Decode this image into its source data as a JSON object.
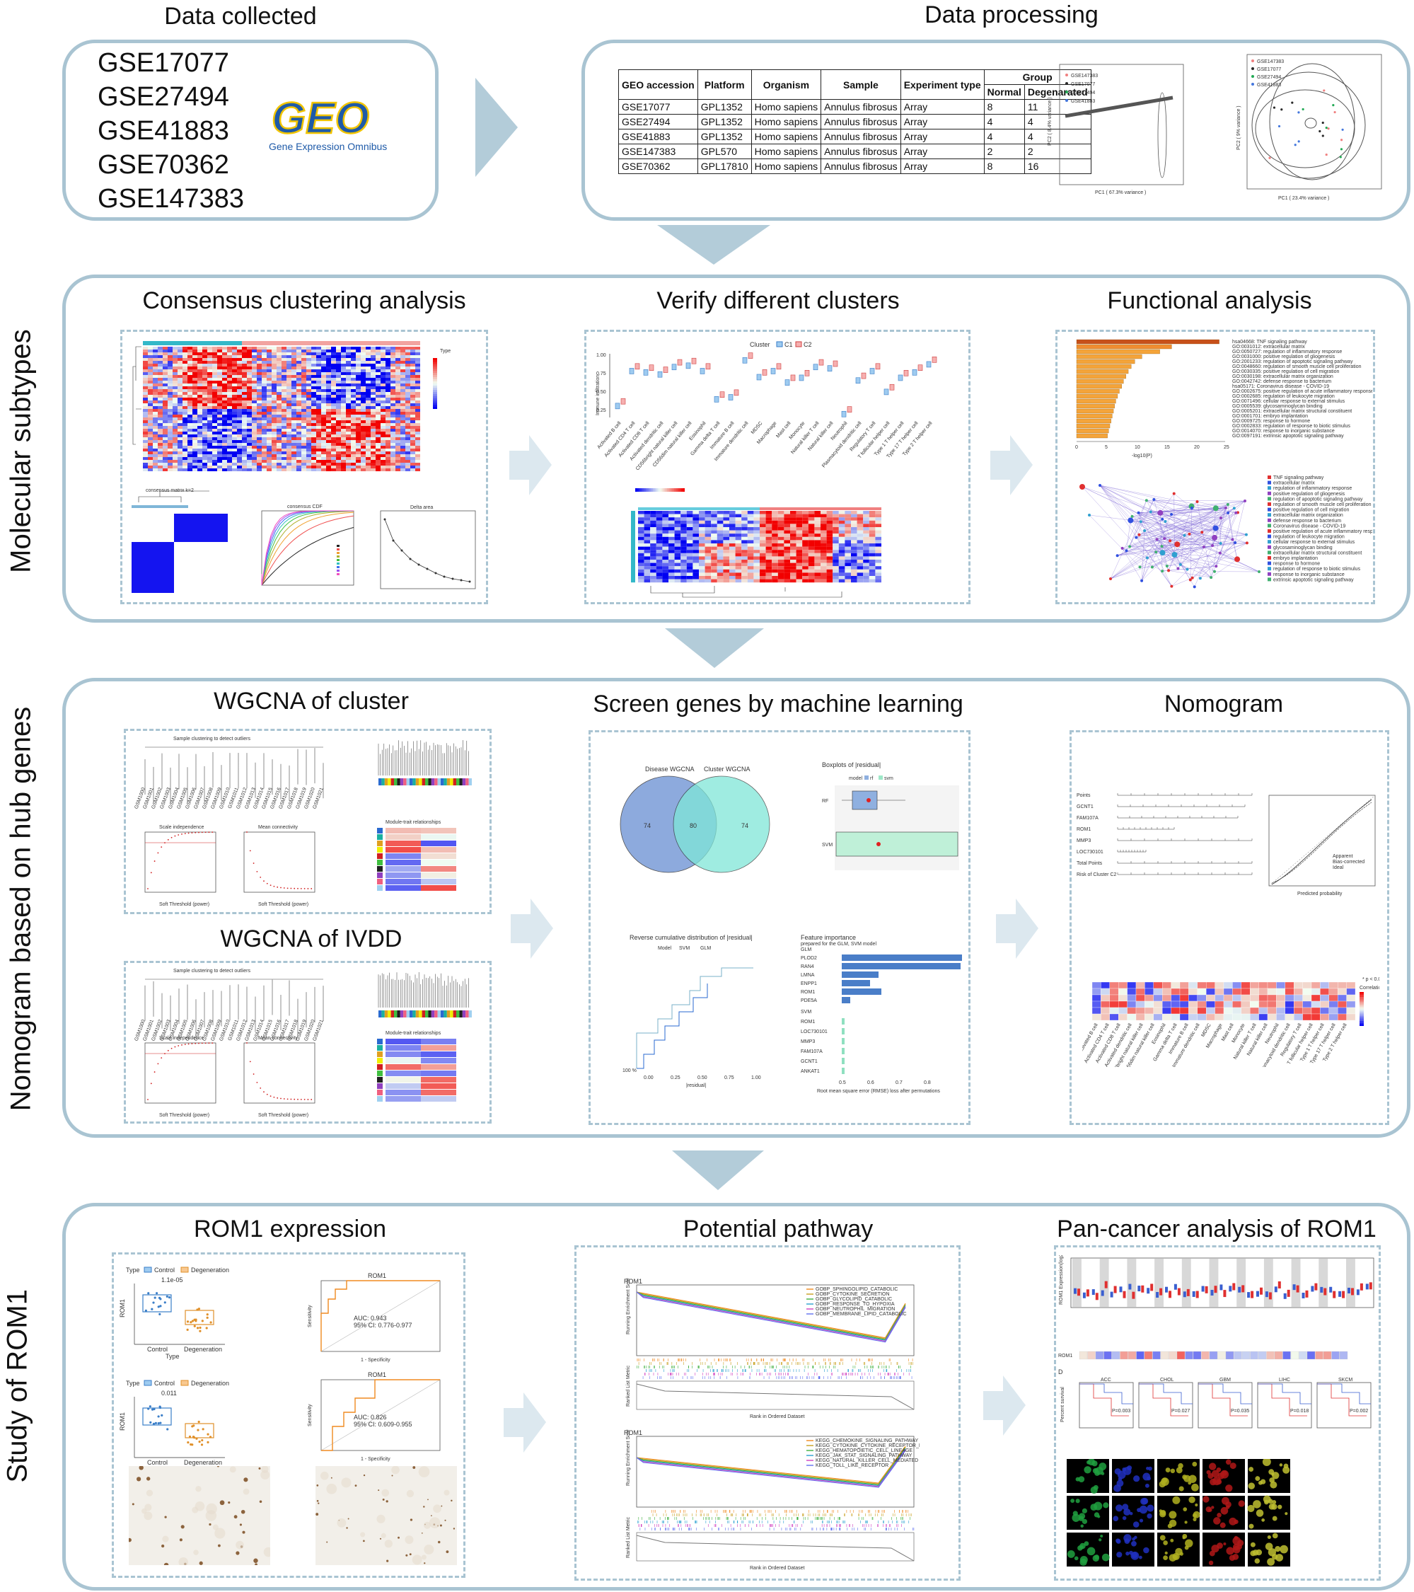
{
  "stages": {
    "data_collected": {
      "title": "Data collected",
      "datasets": [
        "GSE17077",
        "GSE27494",
        "GSE41883",
        "GSE70362",
        "GSE147383"
      ],
      "logo_text": "GEO",
      "logo_subtitle": "Gene Expression Omnibus"
    },
    "data_processing": {
      "title": "Data processing",
      "table": {
        "headers": [
          "GEO accession",
          "Platform",
          "Organism",
          "Sample",
          "Experiment type",
          "Group"
        ],
        "subheaders": [
          "Normal",
          "Degenarated"
        ],
        "rows": [
          [
            "GSE17077",
            "GPL1352",
            "Homo sapiens",
            "Annulus fibrosus",
            "Array",
            "8",
            "11"
          ],
          [
            "GSE27494",
            "GPL1352",
            "Homo sapiens",
            "Annulus fibrosus",
            "Array",
            "4",
            "4"
          ],
          [
            "GSE41883",
            "GPL1352",
            "Homo sapiens",
            "Annulus fibrosus",
            "Array",
            "4",
            "4"
          ],
          [
            "GSE147383",
            "GPL570",
            "Homo sapiens",
            "Annulus fibrosus",
            "Array",
            "2",
            "2"
          ],
          [
            "GSE70362",
            "GPL17810",
            "Homo sapiens",
            "Annulus fibrosus",
            "Array",
            "8",
            "16"
          ]
        ]
      },
      "pca_before_legend": [
        "GSE147383",
        "GSE17077",
        "GSE27494",
        "GSE41883"
      ],
      "pca_before_xlabel": "PC1 ( 67.3% variance )",
      "pca_before_ylabel": "PC2 ( 8.4% variance )",
      "pca_after_legend": [
        "GSE147383",
        "GSE17077",
        "GSE27494",
        "GSE41883"
      ],
      "pca_after_xlabel": "PC1 ( 23.4% variance )",
      "pca_after_ylabel": "PC2 ( 9% variance )"
    },
    "molecular": {
      "side_label": "Molecular subtypes",
      "sections": [
        "Consensus clustering analysis",
        "Verify different clusters",
        "Functional analysis"
      ],
      "cluster_legend": [
        "Cluster",
        "C1",
        "C2"
      ],
      "cluster_ylabel": "Immune infiltration",
      "immune_cells": [
        "Activated B cell",
        "Activated CD4 T cell",
        "Activated CD8 T cell",
        "Activated dendritic cell",
        "CD56bright natural killer cell",
        "CD56dim natural killer cell",
        "Eosinophil",
        "Gamma delta T cell",
        "Immature B cell",
        "Immature dendritic cell",
        "MDSC",
        "Macrophage",
        "Mast cell",
        "Monocyte",
        "Natural killer T cell",
        "Natural killer cell",
        "Neutrophil",
        "Plasmacytoid dendritic cell",
        "Regulatory T cell",
        "T follicular helper cell",
        "Type 1 T helper cell",
        "Type 17 T helper cell",
        "Type 2 T helper cell"
      ],
      "go_terms": [
        "hsa04668: TNF signaling pathway",
        "GO:0031012: extracellular matrix",
        "GO:0050727: regulation of inflammatory response",
        "GO:0031000: positive regulation of gliogenesis",
        "GO:2001233: regulation of apoptotic signaling pathway",
        "GO:0048660: regulation of smooth muscle cell proliferation",
        "GO:0030335: positive regulation of cell migration",
        "GO:0030198: extracellular matrix organization",
        "GO:0042742: defense response to bacterium",
        "hsa05171: Coronavirus disease - COVID-19",
        "GO:0002675: positive regulation of acute inflammatory response",
        "GO:0002685: regulation of leukocyte migration",
        "GO:0071496: cellular response to external stimulus",
        "GO:0005539: glycosaminoglycan binding",
        "GO:0005201: extracellular matrix structural constituent",
        "GO:0001701: embryo implantation",
        "GO:0009725: response to hormone",
        "GO:0002833: regulation of response to biotic stimulus",
        "GO:0014070: response to inorganic substance",
        "GO:0097191: extrinsic apoptotic signaling pathway"
      ],
      "go_xlabel": "-log10(P)"
    },
    "nomogram": {
      "side_label": "Nomogram based on hub genes",
      "sections": [
        "WGCNA of cluster",
        "Screen genes by machine learning",
        "Nomogram",
        "WGCNA of IVDD"
      ],
      "dendro_title": "Sample clustering to detect outliers",
      "dendro_title2": "Sample clustering to detect outliers",
      "scale_title": "Scale independence",
      "connect_title": "Mean connectivity",
      "soft_label": "Soft Threshold (power)",
      "module_title": "Module-trait relationships",
      "venn_left": "Disease WGCNA",
      "venn_right": "Cluster WGCNA",
      "venn_counts": [
        "74",
        "80",
        "74"
      ],
      "box_title": "Boxplots of |residual|",
      "box_legend": [
        "model",
        "rf",
        "svm"
      ],
      "rev_title": "Reverse cumulative distribution of |residual|",
      "rev_legend": [
        "Model",
        "SVM",
        "GLM"
      ],
      "rev_xlabel": "|residual|",
      "feat_title": "Feature importance",
      "feat_subtitle": "prepared for the GLM, SVM model",
      "feat_glm": "GLM",
      "feat_svm": "SVM",
      "feat_genes_glm": [
        "PLOD2",
        "RAN4",
        "LMNA",
        "ENPP1",
        "ROM1",
        "PDE5A"
      ],
      "feat_genes_svm": [
        "ROM1",
        "LOC730101",
        "MMP3",
        "FAM107A",
        "GCNT1",
        "ANKAT1"
      ],
      "feat_values_glm": [
        0.93,
        0.92,
        0.63,
        0.6,
        0.64,
        0.53
      ],
      "feat_values_svm": [
        0.51,
        0.51,
        0.51,
        0.51,
        0.51,
        0.51
      ],
      "feat_xlabel": "Root mean square error (RMSE) loss after permutations",
      "nomo_rows": [
        "Points",
        "GCNT1",
        "FAM107A",
        "ROM1",
        "MMP3",
        "LOC730101",
        "Total Points",
        "Risk of Cluster C2"
      ],
      "nomo_xlabel": "Predicted probability",
      "nomo_legend": [
        "Apparent",
        "Bias-corrected",
        "Ideal"
      ],
      "corr_legend_title": "Correlation",
      "corr_sig": "* p < 0.05"
    },
    "rom1": {
      "side_label": "Study of ROM1",
      "sections": [
        "ROM1 expression",
        "Potential pathway",
        "Pan-cancer analysis of ROM1"
      ],
      "box1_legend": [
        "Type",
        "Control",
        "Degeneration"
      ],
      "box1_p": "1.1e-05",
      "box2_p": "0.011",
      "box_xlabels": [
        "Control",
        "Degeneration"
      ],
      "box_ylabel": "ROM1",
      "box_xtitle": "Type",
      "roc1_title": "ROM1",
      "roc1_auc": "AUC: 0.943",
      "roc1_ci": "95% CI: 0.776-0.977",
      "roc2_title": "ROM1",
      "roc2_auc": "AUC: 0.826",
      "roc2_ci": "95% CI: 0.609-0.955",
      "roc_xlabel": "1 - Specificity",
      "roc_ylabel": "Sensitivity",
      "gsea1_label": "ROM1",
      "gsea2_label": "ROM1",
      "gsea1_terms": [
        "GOBP_SPHINGOLIPID_CATABOLIC",
        "GOBP_CYTOKINE_SECRETION",
        "GOBP_GLYCOLIPID_CATABOLIC",
        "GOBP_RESPONSE_TO_HYPOXIA",
        "GOBP_NEUTROPHIL_MIGRATION",
        "GOBP_MEMBRANE_LIPID_CATABOLIC"
      ],
      "gsea2_terms": [
        "KEGG_CHEMOKINE_SIGNALING_PATHWAY",
        "KEGG_CYTOKINE_CYTOKINE_RECEPTOR_INTERACTION",
        "KEGG_HEMATOPOIETIC_CELL_LINEAGE",
        "KEGG_JAK_STAT_SIGNALING_PATHWAY",
        "KEGG_NATURAL_KILLER_CELL_MEDIATED",
        "KEGG_TOLL_LIKE_RECEPTOR"
      ],
      "gsea_ylabel": "Running Enrichment Score",
      "gsea_ylabel2": "Ranked List Metric",
      "gsea_xlabel": "Rank in Ordered Dataset",
      "pan_ylabel": "ROM1 Expression(log2TPM)",
      "pan_heat_label": "ROM1",
      "pan_panel_letter": "D",
      "km_titles": [
        "ACC",
        "CHOL",
        "GBM",
        "LIHC",
        "SKCM"
      ],
      "km_p": [
        "P=0.003",
        "P=0.027",
        "P=0.035",
        "P=0.018",
        "P=0.002"
      ],
      "km_ylabel": "Percent survival"
    }
  },
  "colors": {
    "panel_border": "#a9c4d2",
    "arrow": "#b3ccd9",
    "heat_red": "#e0302a",
    "heat_blue": "#1f3fd6",
    "go_orange": "#f4a43a",
    "gsea_green": "#2cb34a",
    "geo_blue": "#1e5aa8",
    "geo_yellow": "#f1c400"
  }
}
